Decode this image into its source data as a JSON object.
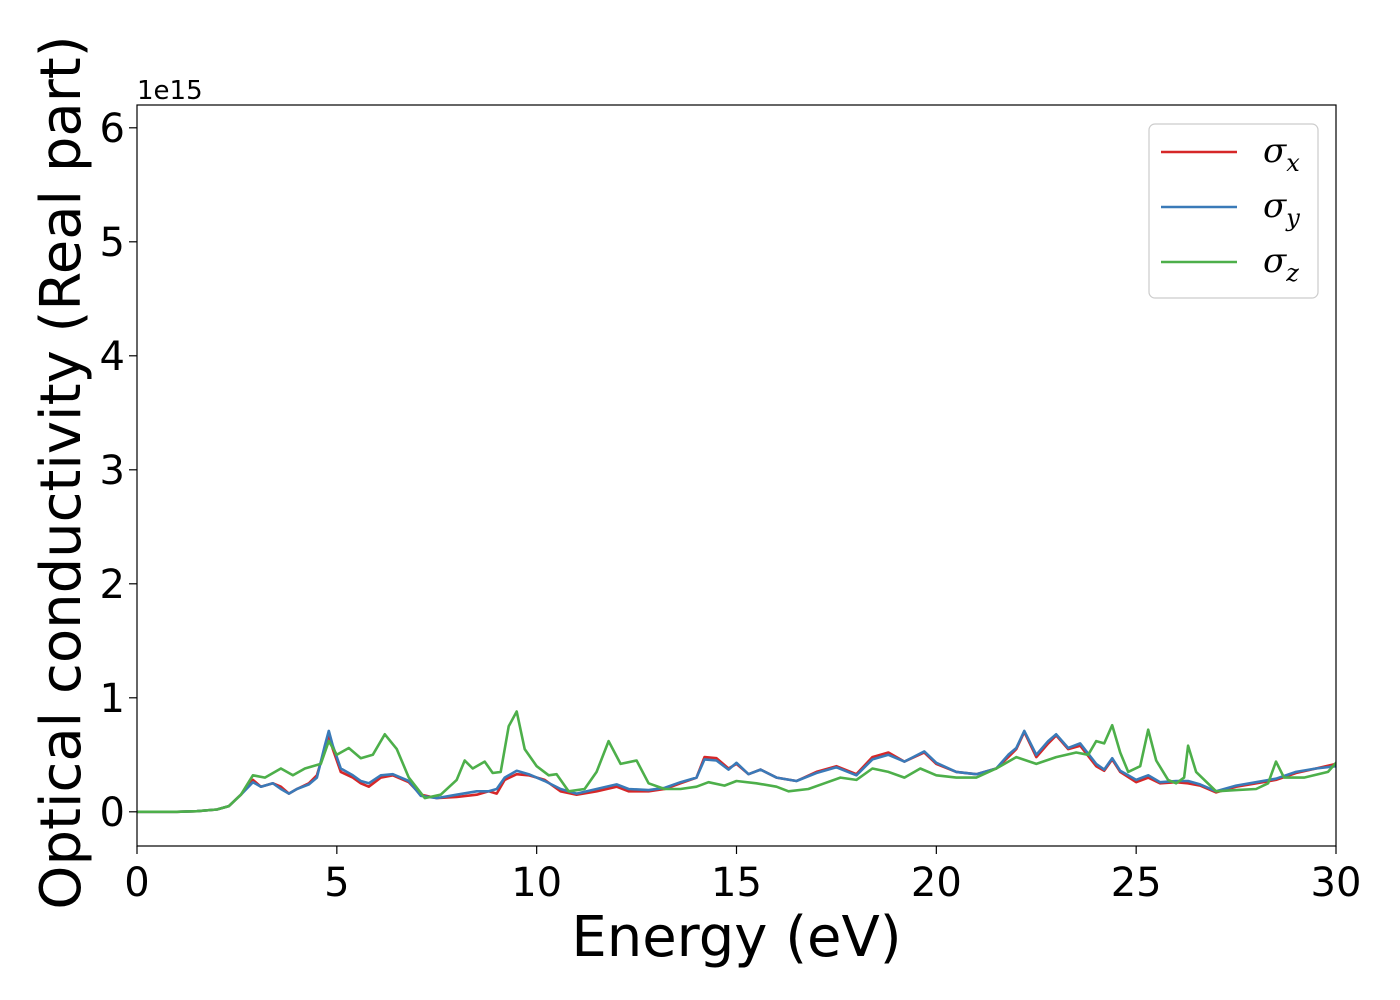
{
  "chart_data": {
    "type": "line",
    "title": "",
    "xlabel": "Energy (eV)",
    "ylabel": "Optical conductivity (Real part)",
    "y_offset_label": "1e15",
    "xlim": [
      0,
      30
    ],
    "ylim": [
      -0.3,
      6.2
    ],
    "xticks": [
      0,
      5,
      10,
      15,
      20,
      25,
      30
    ],
    "yticks": [
      0,
      1,
      2,
      3,
      4,
      5,
      6
    ],
    "xtick_labels": [
      "0",
      "5",
      "10",
      "15",
      "20",
      "25",
      "30"
    ],
    "ytick_labels": [
      "0",
      "1",
      "2",
      "3",
      "4",
      "5",
      "6"
    ],
    "legend_position": "top-right",
    "grid": false,
    "series": [
      {
        "name": "σx",
        "base": "σ",
        "sub": "x",
        "color": "#d62728",
        "points": [
          [
            0,
            0
          ],
          [
            1,
            0
          ],
          [
            1.5,
            0.005
          ],
          [
            2,
            0.02
          ],
          [
            2.3,
            0.05
          ],
          [
            2.6,
            0.15
          ],
          [
            2.9,
            0.28
          ],
          [
            3.1,
            0.22
          ],
          [
            3.4,
            0.25
          ],
          [
            3.6,
            0.22
          ],
          [
            3.8,
            0.16
          ],
          [
            4,
            0.2
          ],
          [
            4.3,
            0.25
          ],
          [
            4.5,
            0.32
          ],
          [
            4.7,
            0.55
          ],
          [
            4.8,
            0.68
          ],
          [
            4.9,
            0.55
          ],
          [
            5.1,
            0.35
          ],
          [
            5.4,
            0.3
          ],
          [
            5.6,
            0.25
          ],
          [
            5.8,
            0.22
          ],
          [
            6.1,
            0.3
          ],
          [
            6.4,
            0.32
          ],
          [
            6.8,
            0.26
          ],
          [
            7.1,
            0.15
          ],
          [
            7.5,
            0.12
          ],
          [
            8,
            0.13
          ],
          [
            8.5,
            0.15
          ],
          [
            8.8,
            0.18
          ],
          [
            9,
            0.16
          ],
          [
            9.2,
            0.28
          ],
          [
            9.5,
            0.33
          ],
          [
            9.8,
            0.32
          ],
          [
            10.2,
            0.28
          ],
          [
            10.6,
            0.18
          ],
          [
            11,
            0.15
          ],
          [
            11.5,
            0.18
          ],
          [
            12,
            0.22
          ],
          [
            12.3,
            0.18
          ],
          [
            12.8,
            0.18
          ],
          [
            13.2,
            0.2
          ],
          [
            13.6,
            0.25
          ],
          [
            14,
            0.3
          ],
          [
            14.2,
            0.48
          ],
          [
            14.5,
            0.47
          ],
          [
            14.8,
            0.38
          ],
          [
            15,
            0.42
          ],
          [
            15.3,
            0.33
          ],
          [
            15.6,
            0.37
          ],
          [
            16,
            0.3
          ],
          [
            16.5,
            0.27
          ],
          [
            17,
            0.35
          ],
          [
            17.5,
            0.4
          ],
          [
            18,
            0.33
          ],
          [
            18.4,
            0.48
          ],
          [
            18.8,
            0.52
          ],
          [
            19.2,
            0.44
          ],
          [
            19.7,
            0.52
          ],
          [
            20,
            0.42
          ],
          [
            20.5,
            0.35
          ],
          [
            21,
            0.33
          ],
          [
            21.5,
            0.38
          ],
          [
            21.8,
            0.48
          ],
          [
            22,
            0.55
          ],
          [
            22.2,
            0.7
          ],
          [
            22.5,
            0.48
          ],
          [
            22.8,
            0.6
          ],
          [
            23,
            0.67
          ],
          [
            23.3,
            0.55
          ],
          [
            23.6,
            0.58
          ],
          [
            24,
            0.4
          ],
          [
            24.2,
            0.36
          ],
          [
            24.4,
            0.46
          ],
          [
            24.6,
            0.35
          ],
          [
            25,
            0.26
          ],
          [
            25.3,
            0.3
          ],
          [
            25.6,
            0.25
          ],
          [
            26,
            0.26
          ],
          [
            26.3,
            0.25
          ],
          [
            26.6,
            0.23
          ],
          [
            27,
            0.17
          ],
          [
            27.5,
            0.22
          ],
          [
            28,
            0.25
          ],
          [
            28.5,
            0.28
          ],
          [
            29,
            0.34
          ],
          [
            29.5,
            0.38
          ],
          [
            30,
            0.42
          ]
        ]
      },
      {
        "name": "σy",
        "base": "σ",
        "sub": "y",
        "color": "#3a7ab8",
        "points": [
          [
            0,
            0
          ],
          [
            1,
            0
          ],
          [
            1.5,
            0.005
          ],
          [
            2,
            0.02
          ],
          [
            2.3,
            0.05
          ],
          [
            2.6,
            0.15
          ],
          [
            2.9,
            0.26
          ],
          [
            3.1,
            0.22
          ],
          [
            3.4,
            0.25
          ],
          [
            3.6,
            0.2
          ],
          [
            3.8,
            0.16
          ],
          [
            4,
            0.2
          ],
          [
            4.3,
            0.24
          ],
          [
            4.5,
            0.3
          ],
          [
            4.7,
            0.58
          ],
          [
            4.8,
            0.71
          ],
          [
            4.9,
            0.58
          ],
          [
            5.1,
            0.38
          ],
          [
            5.4,
            0.32
          ],
          [
            5.6,
            0.27
          ],
          [
            5.8,
            0.25
          ],
          [
            6.1,
            0.32
          ],
          [
            6.4,
            0.33
          ],
          [
            6.8,
            0.27
          ],
          [
            7.1,
            0.14
          ],
          [
            7.5,
            0.12
          ],
          [
            8,
            0.15
          ],
          [
            8.5,
            0.18
          ],
          [
            8.8,
            0.18
          ],
          [
            9,
            0.2
          ],
          [
            9.2,
            0.3
          ],
          [
            9.5,
            0.36
          ],
          [
            9.8,
            0.33
          ],
          [
            10.2,
            0.27
          ],
          [
            10.6,
            0.2
          ],
          [
            11,
            0.16
          ],
          [
            11.5,
            0.2
          ],
          [
            12,
            0.24
          ],
          [
            12.3,
            0.2
          ],
          [
            12.8,
            0.19
          ],
          [
            13.2,
            0.21
          ],
          [
            13.6,
            0.26
          ],
          [
            14,
            0.3
          ],
          [
            14.2,
            0.46
          ],
          [
            14.5,
            0.45
          ],
          [
            14.8,
            0.37
          ],
          [
            15,
            0.43
          ],
          [
            15.3,
            0.33
          ],
          [
            15.6,
            0.37
          ],
          [
            16,
            0.3
          ],
          [
            16.5,
            0.27
          ],
          [
            17,
            0.34
          ],
          [
            17.5,
            0.39
          ],
          [
            18,
            0.32
          ],
          [
            18.4,
            0.46
          ],
          [
            18.8,
            0.5
          ],
          [
            19.2,
            0.44
          ],
          [
            19.7,
            0.53
          ],
          [
            20,
            0.43
          ],
          [
            20.5,
            0.35
          ],
          [
            21,
            0.33
          ],
          [
            21.5,
            0.38
          ],
          [
            21.8,
            0.5
          ],
          [
            22,
            0.56
          ],
          [
            22.2,
            0.71
          ],
          [
            22.5,
            0.5
          ],
          [
            22.8,
            0.62
          ],
          [
            23,
            0.68
          ],
          [
            23.3,
            0.56
          ],
          [
            23.6,
            0.6
          ],
          [
            24,
            0.42
          ],
          [
            24.2,
            0.37
          ],
          [
            24.4,
            0.47
          ],
          [
            24.6,
            0.36
          ],
          [
            25,
            0.28
          ],
          [
            25.3,
            0.32
          ],
          [
            25.6,
            0.26
          ],
          [
            26,
            0.27
          ],
          [
            26.3,
            0.27
          ],
          [
            26.6,
            0.24
          ],
          [
            27,
            0.18
          ],
          [
            27.5,
            0.23
          ],
          [
            28,
            0.26
          ],
          [
            28.5,
            0.29
          ],
          [
            29,
            0.35
          ],
          [
            29.5,
            0.38
          ],
          [
            30,
            0.4
          ]
        ]
      },
      {
        "name": "σz",
        "base": "σ",
        "sub": "z",
        "color": "#4daf4a",
        "points": [
          [
            0,
            0
          ],
          [
            1,
            0
          ],
          [
            1.5,
            0.005
          ],
          [
            2,
            0.02
          ],
          [
            2.3,
            0.05
          ],
          [
            2.6,
            0.15
          ],
          [
            2.9,
            0.32
          ],
          [
            3.2,
            0.3
          ],
          [
            3.6,
            0.38
          ],
          [
            3.9,
            0.32
          ],
          [
            4.2,
            0.38
          ],
          [
            4.6,
            0.42
          ],
          [
            4.8,
            0.62
          ],
          [
            5,
            0.5
          ],
          [
            5.3,
            0.56
          ],
          [
            5.6,
            0.47
          ],
          [
            5.9,
            0.5
          ],
          [
            6.2,
            0.68
          ],
          [
            6.5,
            0.55
          ],
          [
            6.8,
            0.3
          ],
          [
            7.2,
            0.12
          ],
          [
            7.6,
            0.15
          ],
          [
            8,
            0.28
          ],
          [
            8.2,
            0.45
          ],
          [
            8.4,
            0.38
          ],
          [
            8.7,
            0.44
          ],
          [
            8.9,
            0.34
          ],
          [
            9.1,
            0.35
          ],
          [
            9.3,
            0.75
          ],
          [
            9.5,
            0.88
          ],
          [
            9.7,
            0.55
          ],
          [
            10,
            0.4
          ],
          [
            10.3,
            0.32
          ],
          [
            10.5,
            0.33
          ],
          [
            10.8,
            0.18
          ],
          [
            11.2,
            0.2
          ],
          [
            11.5,
            0.35
          ],
          [
            11.8,
            0.62
          ],
          [
            12.1,
            0.42
          ],
          [
            12.5,
            0.45
          ],
          [
            12.8,
            0.25
          ],
          [
            13.2,
            0.2
          ],
          [
            13.6,
            0.2
          ],
          [
            14,
            0.22
          ],
          [
            14.3,
            0.26
          ],
          [
            14.7,
            0.23
          ],
          [
            15,
            0.27
          ],
          [
            15.5,
            0.25
          ],
          [
            16,
            0.22
          ],
          [
            16.3,
            0.18
          ],
          [
            16.8,
            0.2
          ],
          [
            17.2,
            0.25
          ],
          [
            17.6,
            0.3
          ],
          [
            18,
            0.28
          ],
          [
            18.4,
            0.38
          ],
          [
            18.8,
            0.35
          ],
          [
            19.2,
            0.3
          ],
          [
            19.6,
            0.38
          ],
          [
            20,
            0.32
          ],
          [
            20.5,
            0.3
          ],
          [
            21,
            0.3
          ],
          [
            21.5,
            0.38
          ],
          [
            22,
            0.48
          ],
          [
            22.5,
            0.42
          ],
          [
            23,
            0.48
          ],
          [
            23.5,
            0.52
          ],
          [
            23.8,
            0.5
          ],
          [
            24,
            0.62
          ],
          [
            24.2,
            0.6
          ],
          [
            24.4,
            0.76
          ],
          [
            24.6,
            0.52
          ],
          [
            24.8,
            0.35
          ],
          [
            25.1,
            0.4
          ],
          [
            25.3,
            0.72
          ],
          [
            25.5,
            0.45
          ],
          [
            25.8,
            0.28
          ],
          [
            26,
            0.25
          ],
          [
            26.2,
            0.3
          ],
          [
            26.3,
            0.58
          ],
          [
            26.5,
            0.35
          ],
          [
            27,
            0.18
          ],
          [
            27.5,
            0.19
          ],
          [
            28,
            0.2
          ],
          [
            28.3,
            0.25
          ],
          [
            28.5,
            0.44
          ],
          [
            28.7,
            0.3
          ],
          [
            29.2,
            0.3
          ],
          [
            29.8,
            0.35
          ],
          [
            30,
            0.43
          ]
        ]
      }
    ]
  }
}
